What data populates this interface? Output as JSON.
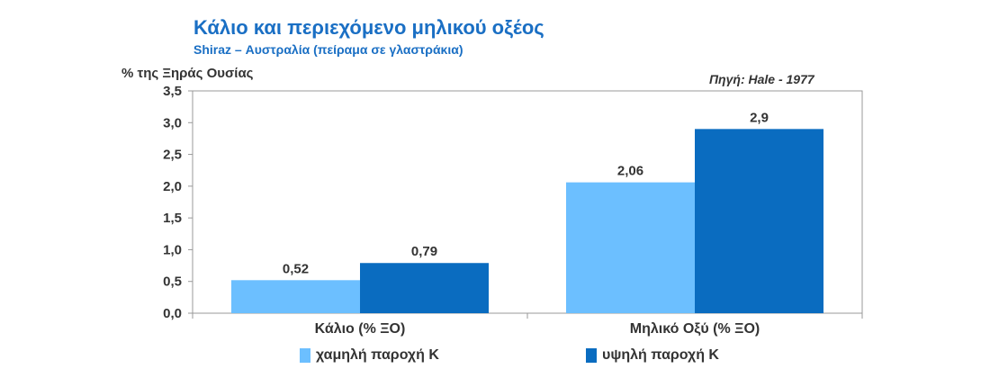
{
  "header": {
    "title": "Κάλιο και περιεχόμενο μηλικού οξέος",
    "subtitle": "Shiraz – Αυστραλία  (πείραμα σε γλαστράκια)",
    "source": "Πηγή: Hale - 1977"
  },
  "chart_data": {
    "type": "bar",
    "title": "Κάλιο και περιεχόμενο μηλικού οξέος",
    "subtitle": "Shiraz – Αυστραλία  (πείραμα σε γλαστράκια)",
    "ylabel": "% της Ξηράς Ουσίας",
    "xlabel": "",
    "categories": [
      "Κάλιο (% ΞΟ)",
      "Μηλικό Οξύ (% ΞΟ)"
    ],
    "series": [
      {
        "name": "χαμηλή παροχή Κ",
        "values": [
          0.52,
          2.06
        ],
        "labels": [
          "0,52",
          "2,06"
        ],
        "color": "#6cbfff"
      },
      {
        "name": "υψηλή παροχή Κ",
        "values": [
          0.79,
          2.9
        ],
        "labels": [
          "0,79",
          "2,9"
        ],
        "color": "#0a6cc0"
      }
    ],
    "ylim": [
      0,
      3.5
    ],
    "yticks": [
      0,
      0.5,
      1.0,
      1.5,
      2.0,
      2.5,
      3.0,
      3.5
    ],
    "ytick_labels": [
      "0,0",
      "0,5",
      "1,0",
      "1,5",
      "2,0",
      "2,5",
      "3,0",
      "3,5"
    ],
    "legend_position": "bottom",
    "grid": false,
    "axis_color": "#999999"
  }
}
